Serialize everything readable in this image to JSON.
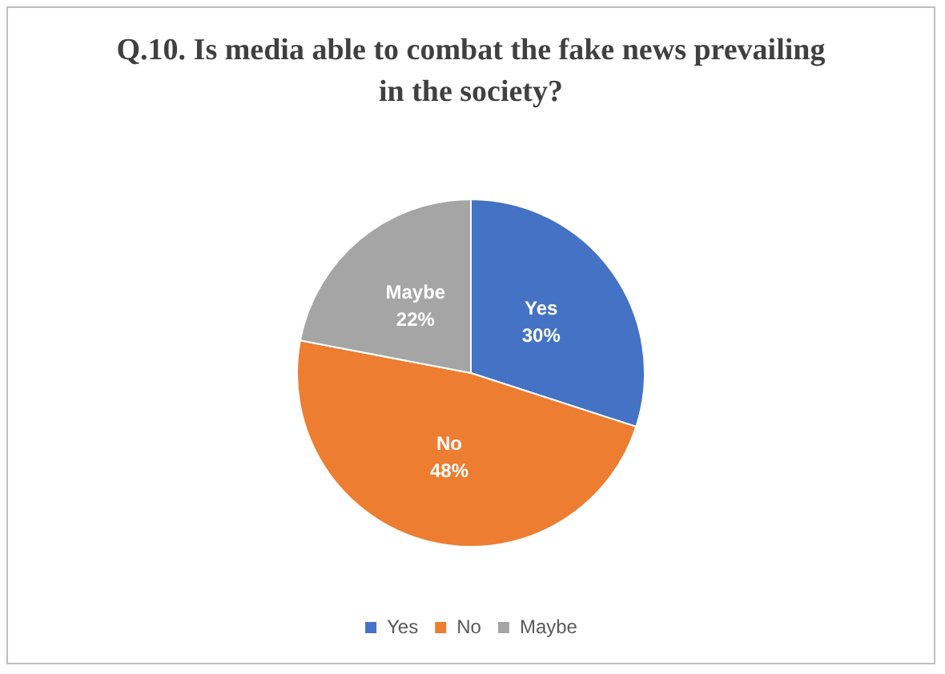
{
  "chart_data": {
    "type": "pie",
    "title": "Q.10. Is media able to combat the fake news prevailing in the society?",
    "categories": [
      "Yes",
      "No",
      "Maybe"
    ],
    "values": [
      30,
      48,
      22
    ],
    "value_labels": [
      "30%",
      "48%",
      "22%"
    ],
    "colors": [
      "#4472c4",
      "#ed7d31",
      "#a5a5a5"
    ],
    "legend": "bottom"
  }
}
